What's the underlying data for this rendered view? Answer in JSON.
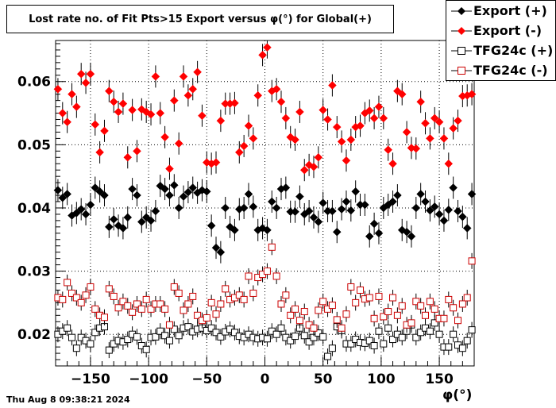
{
  "title": "Lost rate no. of Fit Pts>15 Export versus φ(°) for Global(+)",
  "footer": "Thu Aug  8 09:38:21 2024",
  "legend": [
    {
      "label": "Export (+)",
      "marker": "filled-diamond",
      "color": "#000000"
    },
    {
      "label": "Export (-)",
      "marker": "filled-diamond",
      "color": "#ff0000"
    },
    {
      "label": "TFG24c (+)",
      "marker": "open-square",
      "color": "#000000"
    },
    {
      "label": "TFG24c (-)",
      "marker": "open-square",
      "color": "#cc0000"
    }
  ],
  "chart_data": {
    "type": "scatter",
    "title": "Lost rate no. of Fit Pts>15 Export versus φ(°) for Global(+)",
    "xlabel": "φ(°)",
    "ylabel": "",
    "xlim": [
      -180,
      180
    ],
    "ylim": [
      0.015,
      0.0665
    ],
    "xticks": [
      -150,
      -100,
      -50,
      0,
      50,
      100,
      150
    ],
    "xtick_labels": [
      "−150",
      "−100",
      "−50",
      "0",
      "50",
      "100",
      "150"
    ],
    "yticks": [
      0.02,
      0.03,
      0.04,
      0.05,
      0.06
    ],
    "ytick_labels": [
      "0.02",
      "0.03",
      "0.04",
      "0.05",
      "0.06"
    ],
    "grid": true,
    "legend_position": "top-right",
    "series": [
      {
        "name": "Export (+)",
        "color": "#000000",
        "marker": "filled-diamond",
        "x": [
          -178,
          -174,
          -170,
          -166,
          -162,
          -158,
          -154,
          -150,
          -146,
          -142,
          -138,
          -134,
          -130,
          -126,
          -122,
          -118,
          -114,
          -110,
          -106,
          -102,
          -98,
          -94,
          -90,
          -86,
          -82,
          -78,
          -74,
          -70,
          -66,
          -62,
          -58,
          -54,
          -50,
          -46,
          -42,
          -38,
          -34,
          -30,
          -26,
          -22,
          -18,
          -14,
          -10,
          -6,
          -2,
          2,
          6,
          10,
          14,
          18,
          22,
          26,
          30,
          34,
          38,
          42,
          46,
          50,
          54,
          58,
          62,
          66,
          70,
          74,
          78,
          82,
          86,
          90,
          94,
          98,
          102,
          106,
          110,
          114,
          118,
          122,
          126,
          130,
          134,
          138,
          142,
          146,
          150,
          154,
          158,
          162,
          166,
          170,
          174,
          178
        ],
        "y": [
          0.0428,
          0.0416,
          0.0422,
          0.0388,
          0.0392,
          0.0398,
          0.039,
          0.0405,
          0.0432,
          0.0426,
          0.042,
          0.037,
          0.0382,
          0.0372,
          0.0368,
          0.0385,
          0.043,
          0.042,
          0.0378,
          0.0385,
          0.038,
          0.0395,
          0.0435,
          0.043,
          0.042,
          0.0436,
          0.04,
          0.0418,
          0.0425,
          0.0432,
          0.0424,
          0.0428,
          0.0426,
          0.0372,
          0.0337,
          0.033,
          0.04,
          0.037,
          0.0365,
          0.0398,
          0.04,
          0.0422,
          0.0402,
          0.0365,
          0.0368,
          0.0365,
          0.041,
          0.04,
          0.043,
          0.0432,
          0.0394,
          0.0394,
          0.0418,
          0.039,
          0.0395,
          0.0385,
          0.0378,
          0.0408,
          0.0395,
          0.0395,
          0.0362,
          0.0398,
          0.041,
          0.0396,
          0.0426,
          0.0405,
          0.0405,
          0.0355,
          0.0375,
          0.036,
          0.04,
          0.0405,
          0.041,
          0.042,
          0.0365,
          0.0362,
          0.0355,
          0.04,
          0.0422,
          0.041,
          0.0396,
          0.0402,
          0.039,
          0.038,
          0.0397,
          0.0432,
          0.0395,
          0.0386,
          0.0368,
          0.0422
        ]
      },
      {
        "name": "Export (-)",
        "color": "#ff0000",
        "marker": "filled-diamond",
        "x": [
          -178,
          -174,
          -170,
          -166,
          -162,
          -158,
          -154,
          -150,
          -146,
          -142,
          -138,
          -134,
          -130,
          -126,
          -122,
          -118,
          -114,
          -110,
          -106,
          -102,
          -98,
          -94,
          -90,
          -86,
          -82,
          -78,
          -74,
          -70,
          -66,
          -62,
          -58,
          -54,
          -50,
          -46,
          -42,
          -38,
          -34,
          -30,
          -26,
          -22,
          -18,
          -14,
          -10,
          -6,
          -2,
          2,
          6,
          10,
          14,
          18,
          22,
          26,
          30,
          34,
          38,
          42,
          46,
          50,
          54,
          58,
          62,
          66,
          70,
          74,
          78,
          82,
          86,
          90,
          94,
          98,
          102,
          106,
          110,
          114,
          118,
          122,
          126,
          130,
          134,
          138,
          142,
          146,
          150,
          154,
          158,
          162,
          166,
          170,
          174,
          178
        ],
        "y": [
          0.0588,
          0.055,
          0.0536,
          0.058,
          0.056,
          0.0612,
          0.0598,
          0.0612,
          0.0532,
          0.0488,
          0.0522,
          0.0585,
          0.0568,
          0.0552,
          0.0565,
          0.048,
          0.0555,
          0.049,
          0.0556,
          0.0552,
          0.0548,
          0.0608,
          0.055,
          0.0512,
          0.0462,
          0.057,
          0.0502,
          0.0608,
          0.0578,
          0.0588,
          0.0615,
          0.0546,
          0.0472,
          0.047,
          0.0472,
          0.0538,
          0.0565,
          0.0565,
          0.0566,
          0.0488,
          0.0498,
          0.053,
          0.051,
          0.0578,
          0.0642,
          0.0654,
          0.0585,
          0.0588,
          0.0568,
          0.0542,
          0.0512,
          0.0508,
          0.0552,
          0.046,
          0.0468,
          0.0465,
          0.048,
          0.0555,
          0.054,
          0.0594,
          0.0528,
          0.0505,
          0.0475,
          0.0508,
          0.0528,
          0.053,
          0.055,
          0.0554,
          0.0542,
          0.056,
          0.0542,
          0.0492,
          0.047,
          0.0585,
          0.058,
          0.052,
          0.0495,
          0.0494,
          0.0568,
          0.0534,
          0.051,
          0.0542,
          0.0536,
          0.051,
          0.047,
          0.0526,
          0.0538,
          0.0577,
          0.0578,
          0.058
        ]
      },
      {
        "name": "TFG24c (+)",
        "color": "#000000",
        "marker": "open-square",
        "x": [
          -178,
          -174,
          -170,
          -166,
          -162,
          -158,
          -154,
          -150,
          -146,
          -142,
          -138,
          -134,
          -130,
          -126,
          -122,
          -118,
          -114,
          -110,
          -106,
          -102,
          -98,
          -94,
          -90,
          -86,
          -82,
          -78,
          -74,
          -70,
          -66,
          -62,
          -58,
          -54,
          -50,
          -46,
          -42,
          -38,
          -34,
          -30,
          -26,
          -22,
          -18,
          -14,
          -10,
          -6,
          -2,
          2,
          6,
          10,
          14,
          18,
          22,
          26,
          30,
          34,
          38,
          42,
          46,
          50,
          54,
          58,
          62,
          66,
          70,
          74,
          78,
          82,
          86,
          90,
          94,
          98,
          102,
          106,
          110,
          114,
          118,
          122,
          126,
          130,
          134,
          138,
          142,
          146,
          150,
          154,
          158,
          162,
          166,
          170,
          174,
          178
        ],
        "y": [
          0.02,
          0.0205,
          0.021,
          0.0195,
          0.0178,
          0.0195,
          0.019,
          0.0185,
          0.0203,
          0.021,
          0.0212,
          0.0175,
          0.0185,
          0.019,
          0.0188,
          0.0192,
          0.02,
          0.0196,
          0.0182,
          0.0176,
          0.0195,
          0.0196,
          0.0205,
          0.0198,
          0.019,
          0.0208,
          0.0198,
          0.021,
          0.0212,
          0.0204,
          0.0208,
          0.021,
          0.0206,
          0.021,
          0.0203,
          0.0196,
          0.0204,
          0.0208,
          0.0203,
          0.0197,
          0.0195,
          0.02,
          0.0195,
          0.0193,
          0.0195,
          0.0193,
          0.0205,
          0.02,
          0.021,
          0.0195,
          0.019,
          0.0197,
          0.021,
          0.0198,
          0.0188,
          0.0195,
          0.0202,
          0.0196,
          0.0165,
          0.0178,
          0.0212,
          0.0206,
          0.0185,
          0.0185,
          0.0192,
          0.0187,
          0.0186,
          0.019,
          0.0182,
          0.0205,
          0.0185,
          0.021,
          0.0192,
          0.02,
          0.0195,
          0.0205,
          0.0215,
          0.0195,
          0.0203,
          0.021,
          0.0205,
          0.0218,
          0.02,
          0.018,
          0.018,
          0.02,
          0.0183,
          0.0178,
          0.019,
          0.0207
        ]
      },
      {
        "name": "TFG24c (-)",
        "color": "#cc0000",
        "marker": "open-square",
        "x": [
          -178,
          -174,
          -170,
          -166,
          -162,
          -158,
          -154,
          -150,
          -146,
          -142,
          -138,
          -134,
          -130,
          -126,
          -122,
          -118,
          -114,
          -110,
          -106,
          -102,
          -98,
          -94,
          -90,
          -86,
          -82,
          -78,
          -74,
          -70,
          -66,
          -62,
          -58,
          -54,
          -50,
          -46,
          -42,
          -38,
          -34,
          -30,
          -26,
          -22,
          -18,
          -14,
          -10,
          -6,
          -2,
          2,
          6,
          10,
          14,
          18,
          22,
          26,
          30,
          34,
          38,
          42,
          46,
          50,
          54,
          58,
          62,
          66,
          70,
          74,
          78,
          82,
          86,
          90,
          94,
          98,
          102,
          106,
          110,
          114,
          118,
          122,
          126,
          130,
          134,
          138,
          142,
          146,
          150,
          154,
          158,
          162,
          166,
          170,
          174,
          178
        ],
        "y": [
          0.0258,
          0.0255,
          0.0282,
          0.0265,
          0.0258,
          0.025,
          0.0262,
          0.0275,
          0.024,
          0.023,
          0.0227,
          0.0272,
          0.026,
          0.0242,
          0.0252,
          0.0245,
          0.0235,
          0.0248,
          0.024,
          0.0255,
          0.024,
          0.0248,
          0.0248,
          0.024,
          0.0215,
          0.0275,
          0.0265,
          0.0238,
          0.0248,
          0.026,
          0.023,
          0.0222,
          0.0226,
          0.025,
          0.0232,
          0.0248,
          0.0272,
          0.0255,
          0.0258,
          0.0262,
          0.0255,
          0.0292,
          0.0265,
          0.029,
          0.0295,
          0.03,
          0.0338,
          0.0292,
          0.0248,
          0.0262,
          0.023,
          0.024,
          0.0222,
          0.0236,
          0.0215,
          0.021,
          0.0238,
          0.0252,
          0.024,
          0.0246,
          0.0223,
          0.021,
          0.0232,
          0.0275,
          0.025,
          0.027,
          0.0256,
          0.0258,
          0.0225,
          0.026,
          0.0228,
          0.0236,
          0.0258,
          0.023,
          0.0245,
          0.0215,
          0.0218,
          0.0252,
          0.0245,
          0.023,
          0.0252,
          0.024,
          0.0225,
          0.0225,
          0.0255,
          0.0242,
          0.0222,
          0.0248,
          0.0258,
          0.0316
        ]
      }
    ]
  }
}
